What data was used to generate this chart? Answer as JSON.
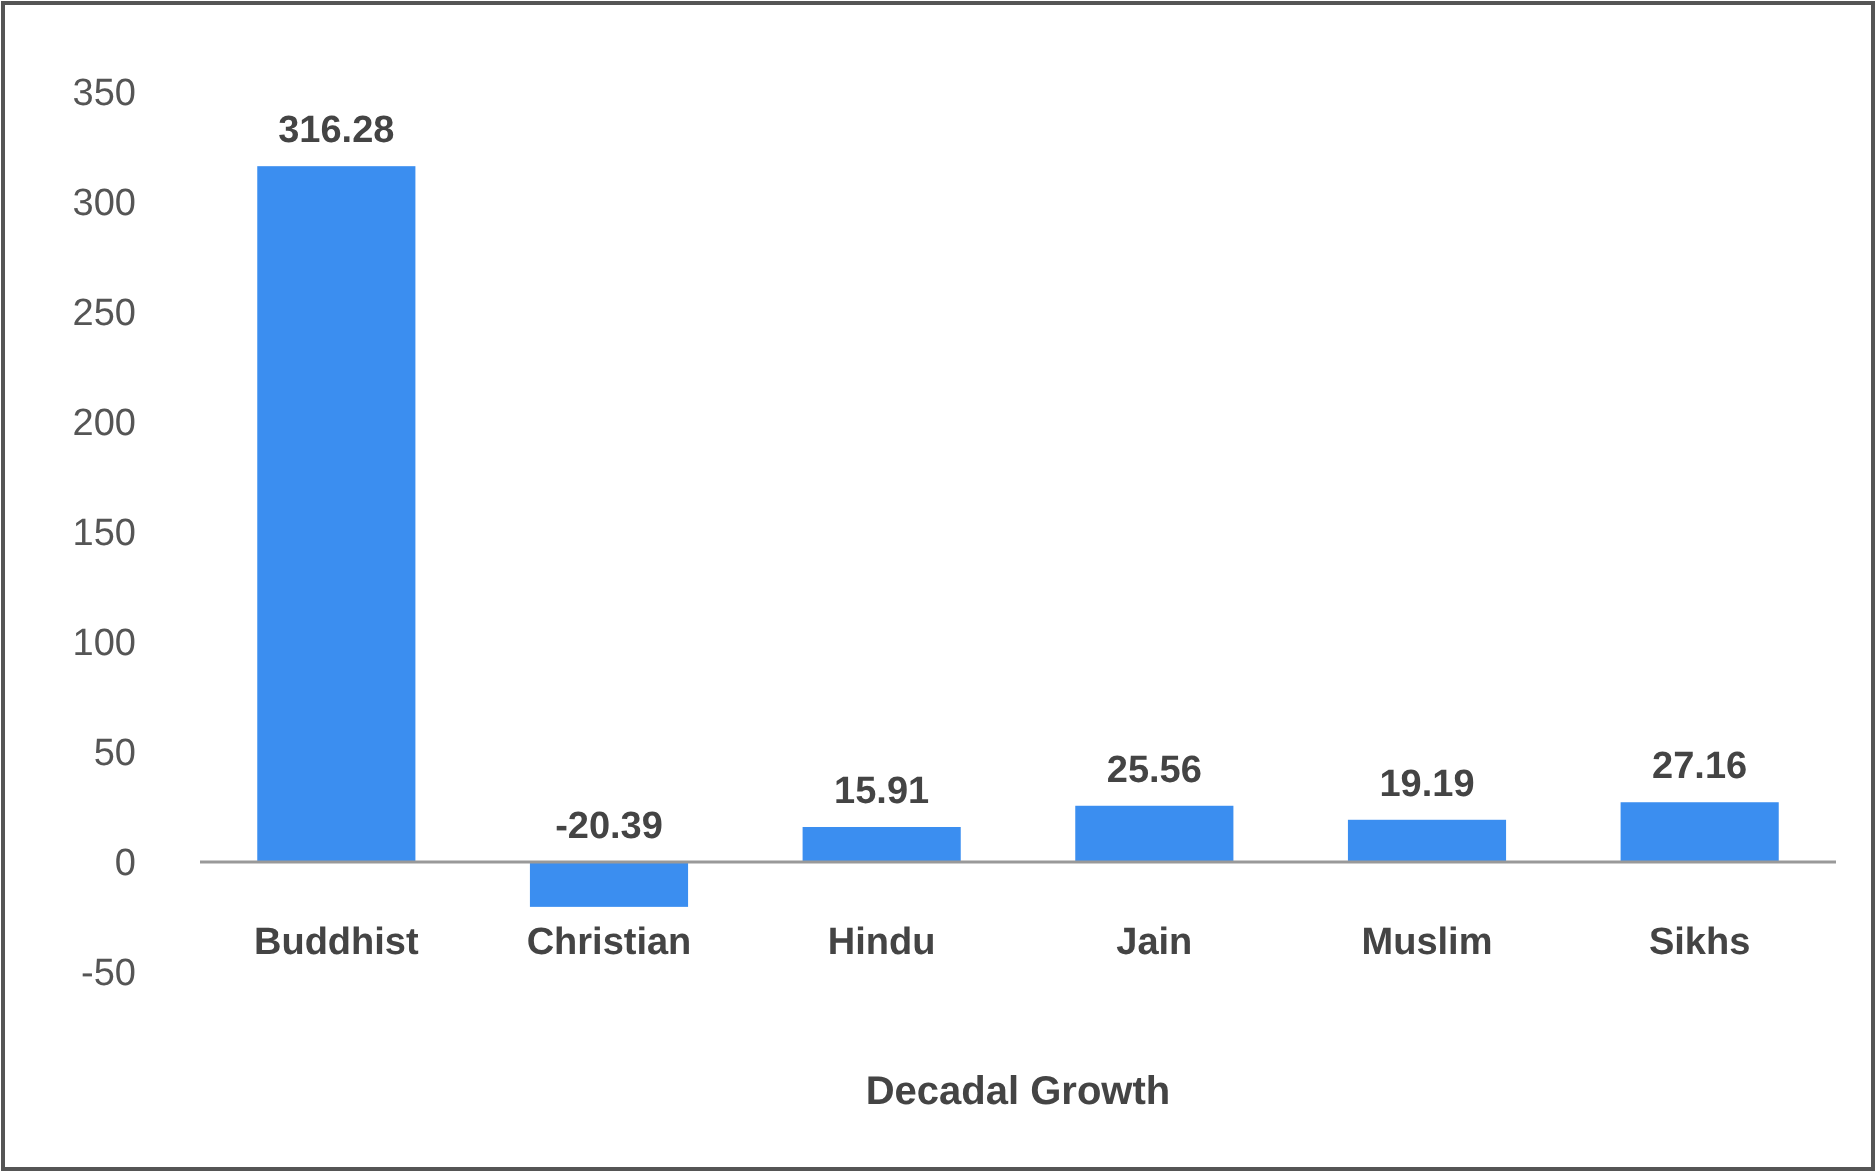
{
  "chart_data": {
    "type": "bar",
    "xlabel": "Decadal Growth",
    "categories": [
      "Buddhist",
      "Christian",
      "Hindu",
      "Jain",
      "Muslim",
      "Sikhs"
    ],
    "values": [
      316.28,
      -20.39,
      15.91,
      25.56,
      19.19,
      27.16
    ],
    "color": "#3b8ef0",
    "ylim": [
      -50,
      350
    ],
    "yticks": [
      -50,
      0,
      50,
      100,
      150,
      200,
      250,
      300,
      350
    ],
    "grid": false,
    "data_labels": true
  }
}
